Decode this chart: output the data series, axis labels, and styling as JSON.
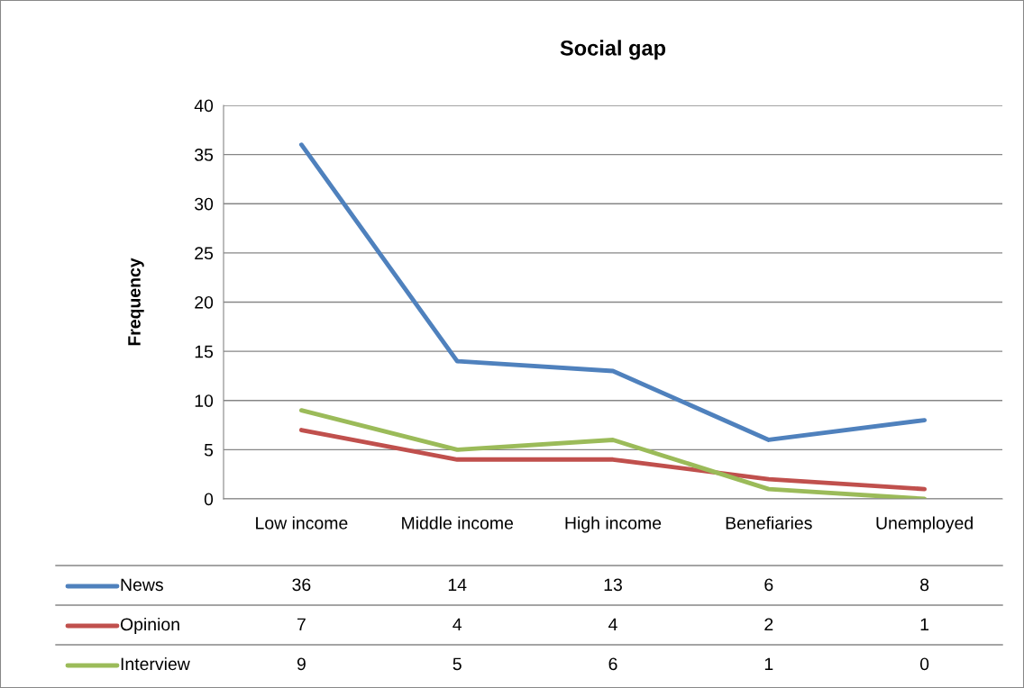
{
  "chart_data": {
    "type": "line",
    "title": "Social gap",
    "ylabel": "Frequency",
    "categories": [
      "Low income",
      "Middle income",
      "High income",
      "Benefiaries",
      "Unemployed"
    ],
    "series": [
      {
        "name": "News",
        "color": "#4f81bd",
        "values": [
          36,
          14,
          13,
          6,
          8
        ]
      },
      {
        "name": "Opinion",
        "color": "#c0504d",
        "values": [
          7,
          4,
          4,
          2,
          1
        ]
      },
      {
        "name": "Interview",
        "color": "#9bbb59",
        "values": [
          9,
          5,
          6,
          1,
          0
        ]
      }
    ],
    "ylim": [
      0,
      40
    ],
    "yticks": [
      0,
      5,
      10,
      15,
      20,
      25,
      30,
      35,
      40
    ],
    "grid": "y",
    "legend": "bottom",
    "data_labels": true,
    "marker": "none",
    "line_style": "solid"
  }
}
